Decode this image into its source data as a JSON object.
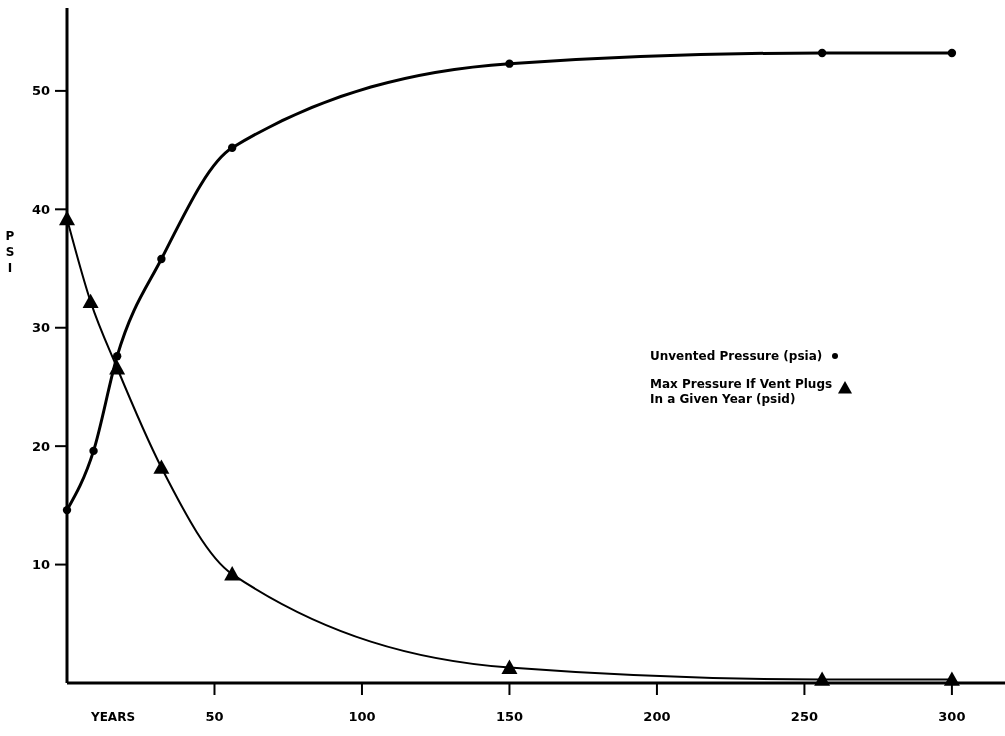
{
  "chart_data": {
    "type": "line",
    "xlabel": "YEARS",
    "ylabel": "PSI",
    "xlim": [
      0,
      318
    ],
    "ylim": [
      0,
      57
    ],
    "xticks": [
      50,
      100,
      150,
      200,
      250,
      300
    ],
    "yticks": [
      10,
      20,
      30,
      40,
      50
    ],
    "grid": false,
    "legend": "right",
    "series": [
      {
        "name": "Unvented Pressure (psia)",
        "color": "#000000",
        "marker": "circle",
        "x": [
          0,
          9,
          17,
          32,
          56,
          150,
          256,
          300
        ],
        "values": [
          14.6,
          19.6,
          27.6,
          35.8,
          45.2,
          52.3,
          53.2,
          53.2
        ]
      },
      {
        "name": "Max Pressure If Vent Plugs In a Given Year (psid)",
        "color": "#000000",
        "marker": "triangle",
        "x": [
          0,
          8,
          17,
          32,
          56,
          150,
          256,
          300
        ],
        "values": [
          39.2,
          32.2,
          26.6,
          18.2,
          9.2,
          1.3,
          0.3,
          0.3
        ]
      }
    ]
  }
}
